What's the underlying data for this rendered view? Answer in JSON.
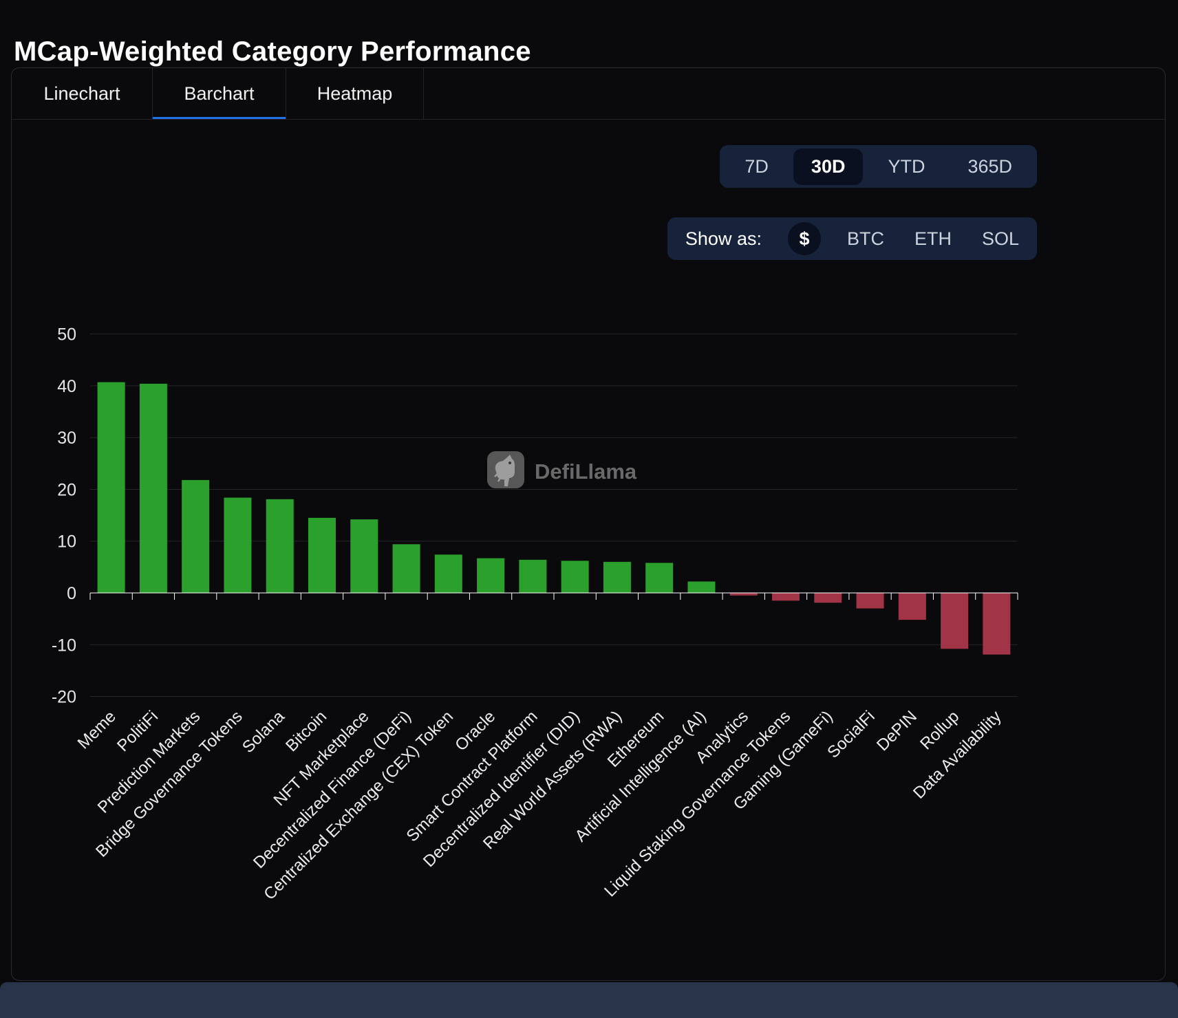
{
  "page": {
    "title": "MCap-Weighted Category Performance"
  },
  "tabs": [
    {
      "label": "Linechart",
      "active": false
    },
    {
      "label": "Barchart",
      "active": true
    },
    {
      "label": "Heatmap",
      "active": false
    }
  ],
  "period_selector": {
    "options": [
      "7D",
      "30D",
      "YTD",
      "365D"
    ],
    "selected": "30D"
  },
  "denomination_selector": {
    "label": "Show as:",
    "options": [
      "$",
      "BTC",
      "ETH",
      "SOL"
    ],
    "selected": "$"
  },
  "watermark": {
    "text": "DefiLlama"
  },
  "colors": {
    "background": "#0a0a0c",
    "accent_blue": "#2172e5",
    "positive_bar": "#2ca02c",
    "negative_bar": "#a23448",
    "control_bg": "#16233b",
    "control_selected_bg": "#0a101f",
    "gridline": "#26262b",
    "zero_axis": "#ffffff"
  },
  "chart_data": {
    "type": "bar",
    "title": "MCap-Weighted Category Performance",
    "xlabel": "",
    "ylabel": "",
    "ylim": [
      -20,
      50
    ],
    "ytick_interval": 10,
    "grid": true,
    "legend": "none",
    "categories": [
      "Meme",
      "PolitiFi",
      "Prediction Markets",
      "Bridge Governance Tokens",
      "Solana",
      "Bitcoin",
      "NFT Marketplace",
      "Decentralized Finance (DeFi)",
      "Centralized Exchange (CEX) Token",
      "Oracle",
      "Smart Contract Platform",
      "Decentralized Identifier (DID)",
      "Real World Assets (RWA)",
      "Ethereum",
      "Artificial Intelligence (AI)",
      "Analytics",
      "Liquid Staking Governance Tokens",
      "Gaming (GameFi)",
      "SocialFi",
      "DePIN",
      "Rollup",
      "Data Availability"
    ],
    "values": [
      40.7,
      40.4,
      21.8,
      18.4,
      18.1,
      14.5,
      14.2,
      9.4,
      7.4,
      6.7,
      6.4,
      6.2,
      6.0,
      5.8,
      2.2,
      -0.5,
      -1.5,
      -1.9,
      -3.0,
      -5.2,
      -10.8,
      -11.9
    ]
  }
}
